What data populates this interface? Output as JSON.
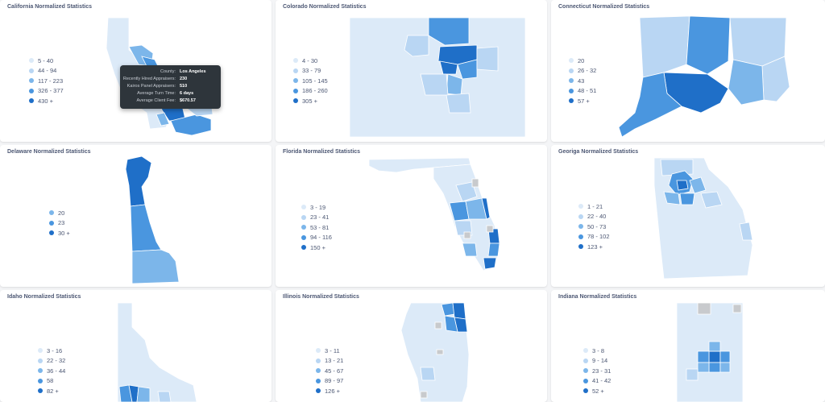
{
  "colors": {
    "tier1": "#dceaf8",
    "tier2": "#b9d6f3",
    "tier3": "#7cb6ea",
    "tier4": "#4a96df",
    "tier5": "#1f6fc8",
    "nodata": "#c8cacd",
    "text": "#4c5773",
    "background": "#f4f5f7",
    "card": "#ffffff"
  },
  "cards": [
    {
      "title": "California Normalized Statistics",
      "legend": [
        "5 - 40",
        "44 - 94",
        "117 - 223",
        "326 - 377",
        "430 +"
      ]
    },
    {
      "title": "Colorado Normalized Statistics",
      "legend": [
        "4 - 30",
        "33 - 79",
        "105 - 145",
        "186 - 260",
        "305 +"
      ]
    },
    {
      "title": "Connecticut Normalized Statistics",
      "legend": [
        "20",
        "26 - 32",
        "43",
        "48 - 51",
        "57 +"
      ]
    },
    {
      "title": "Delaware Normalized Statistics",
      "legend": [
        "20",
        "23",
        "30 +"
      ]
    },
    {
      "title": "Florida Normalized Statistics",
      "legend": [
        "3 - 19",
        "23 - 41",
        "53 - 81",
        "94 - 116",
        "150 +"
      ]
    },
    {
      "title": "Georiga Normalized Statistics",
      "legend": [
        "1 - 21",
        "22 - 40",
        "50 - 73",
        "78 - 102",
        "123 +"
      ]
    },
    {
      "title": "Idaho Normalized Statistics",
      "legend": [
        "3 - 16",
        "22 - 32",
        "36 - 44",
        "58",
        "82 +"
      ]
    },
    {
      "title": "Illinois Normalized Statistics",
      "legend": [
        "3 - 11",
        "13 - 21",
        "45 - 67",
        "89 - 97",
        "126 +"
      ]
    },
    {
      "title": "Indiana Normalized Statistics",
      "legend": [
        "3 - 8",
        "9 - 14",
        "23 - 31",
        "41 - 42",
        "52 +"
      ]
    }
  ],
  "tooltip": {
    "rows": [
      {
        "key": "County:",
        "value": "Los Angeles"
      },
      {
        "key": "Recently Hired Appraisers:",
        "value": "230"
      },
      {
        "key": "Kairos Panel Appraisers:",
        "value": "510"
      },
      {
        "key": "Average Turn Time:",
        "value": "6 days"
      },
      {
        "key": "Average Client Fee:",
        "value": "$670.57"
      }
    ]
  }
}
